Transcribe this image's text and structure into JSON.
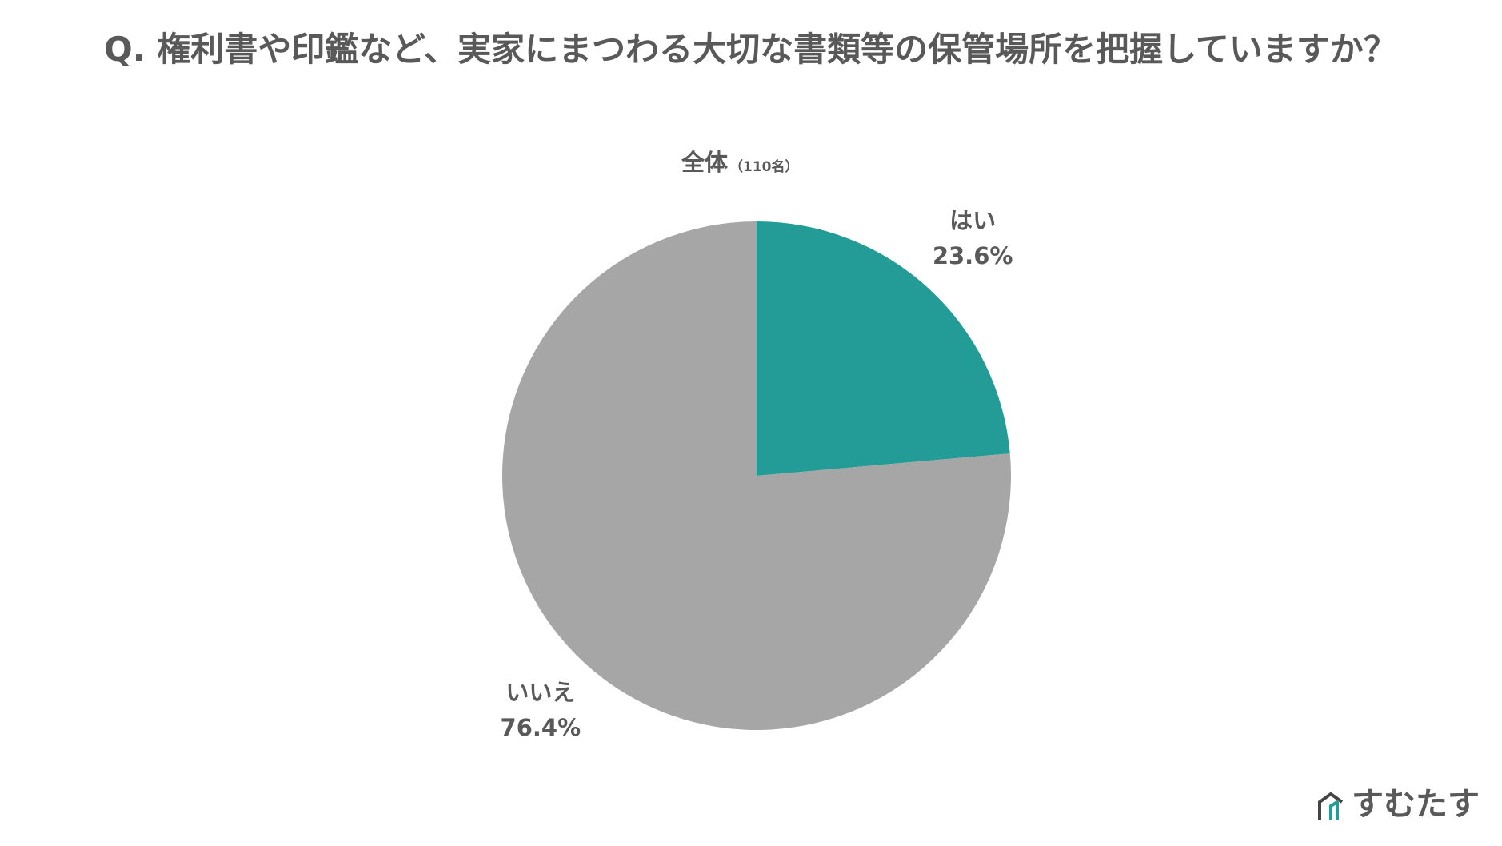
{
  "chart_data": {
    "type": "pie",
    "title": "Q. 権利書や印鑑など、実家にまつわる大切な書類等の保管場所を把握していますか？",
    "subtitle": "全体",
    "sample_size": "（110名）",
    "categories": [
      "はい",
      "いいえ"
    ],
    "values": [
      23.6,
      76.4
    ],
    "value_labels": [
      "23.6%",
      "76.4%"
    ],
    "colors": [
      "#239b96",
      "#a6a6a6"
    ]
  },
  "logo": "すむたす"
}
